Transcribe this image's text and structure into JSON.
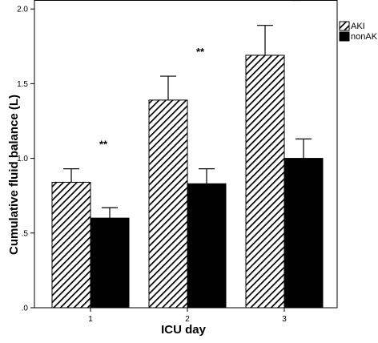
{
  "chart_data": {
    "type": "bar",
    "categories": [
      "1",
      "2",
      "3"
    ],
    "series": [
      {
        "name": "AKI",
        "values": [
          0.84,
          1.39,
          1.69
        ],
        "errors": [
          0.09,
          0.16,
          0.2
        ],
        "fill": "hatched"
      },
      {
        "name": "nonAKI",
        "values": [
          0.6,
          0.83,
          1.0
        ],
        "errors": [
          0.07,
          0.1,
          0.13
        ],
        "fill": "#000000"
      }
    ],
    "annotations": [
      "**",
      "**",
      "**"
    ],
    "xlabel": "ICU day",
    "ylabel": "Cumulative fluid balance (L)",
    "ylim": [
      0,
      2.0
    ],
    "yticks": [
      ".0",
      ".5",
      "1.0",
      "1.5",
      "2.0"
    ],
    "ytick_values": [
      0,
      0.5,
      1.0,
      1.5,
      2.0
    ],
    "grid": false,
    "legend_position": "top-right"
  }
}
